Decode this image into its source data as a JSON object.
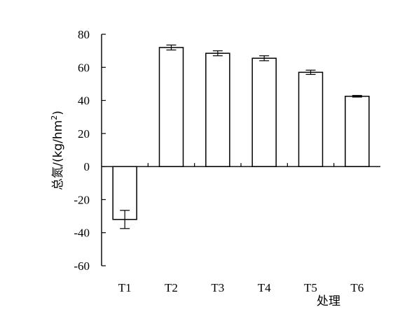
{
  "chart_data": {
    "type": "bar",
    "categories": [
      "T1",
      "T2",
      "T3",
      "T4",
      "T5",
      "T6"
    ],
    "values": [
      -32,
      72,
      68.5,
      65.5,
      57,
      42.5
    ],
    "error": [
      5.5,
      1.5,
      1.5,
      1.5,
      1.3,
      0.5
    ],
    "ylabel_main": "总氮/(kg/hm",
    "ylabel_sup": "2",
    "ylabel_end": ")",
    "xlabel": "处理",
    "ylim": [
      -60,
      80
    ],
    "yticks": [
      80,
      60,
      40,
      20,
      0,
      -20,
      -40,
      -60
    ],
    "ytick_labels": [
      "80",
      "60",
      "40",
      "20",
      "0",
      "-20",
      "-40",
      "-60"
    ],
    "colors": {
      "bar_fill": "#ffffff",
      "bar_stroke": "#000000",
      "axis": "#000000"
    }
  }
}
